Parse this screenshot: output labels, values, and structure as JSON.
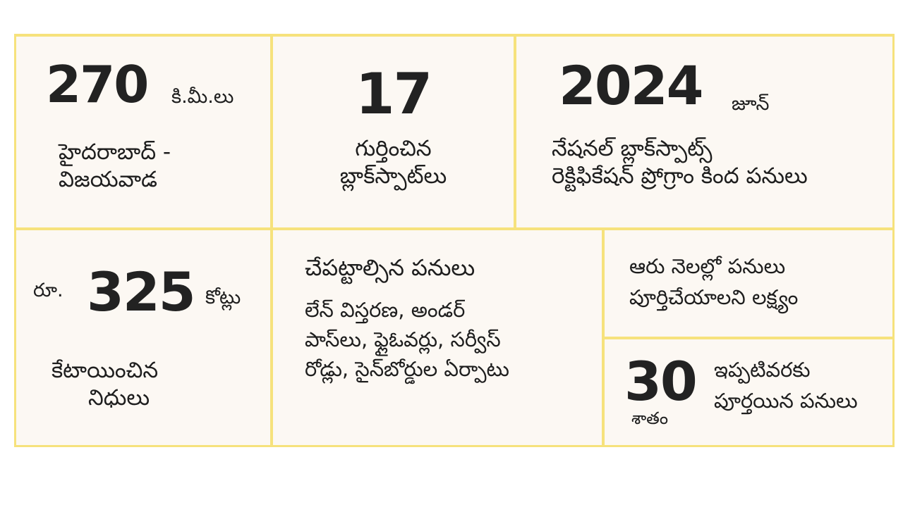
{
  "colors": {
    "border": "#f6e27c",
    "cell_background": "#fcf8f3",
    "text": "#1e1e1e"
  },
  "cells": {
    "distance": {
      "number": "270",
      "unit": "కి.మీ.లు",
      "line1": "హైదరాబాద్ -",
      "line2": "విజయవాడ"
    },
    "blackspots": {
      "number": "17",
      "line1": "గుర్తించిన",
      "line2": "బ్లాక్‌స్పాట్‌లు"
    },
    "program": {
      "number": "2024",
      "unit": "జూన్",
      "line1": "నేషనల్ బ్లాక్‌స్పాట్స్",
      "line2": "రెక్టిఫికేషన్ ప్రోగ్రాం కింద పనులు"
    },
    "funds": {
      "prefix": "రూ.",
      "number": "325",
      "unit": "కోట్లు",
      "line1": "కేటాయించిన",
      "line2": "నిధులు"
    },
    "works": {
      "heading": "చేపట్టాల్సిన పనులు",
      "line1": "లేన్ విస్తరణ, అండర్",
      "line2": "పాస్‌లు, ఫ్లైఓవర్లు, సర్వీస్",
      "line3": "రోడ్లు, సైన్‌బోర్డుల ఏర్పాటు"
    },
    "target": {
      "line1": "ఆరు నెలల్లో పనులు",
      "line2": "పూర్తిచేయాలని లక్ష్యం"
    },
    "progress": {
      "number": "30",
      "unit": "శాతం",
      "line1": "ఇప్పటివరకు",
      "line2": "పూర్తయిన పనులు"
    }
  }
}
